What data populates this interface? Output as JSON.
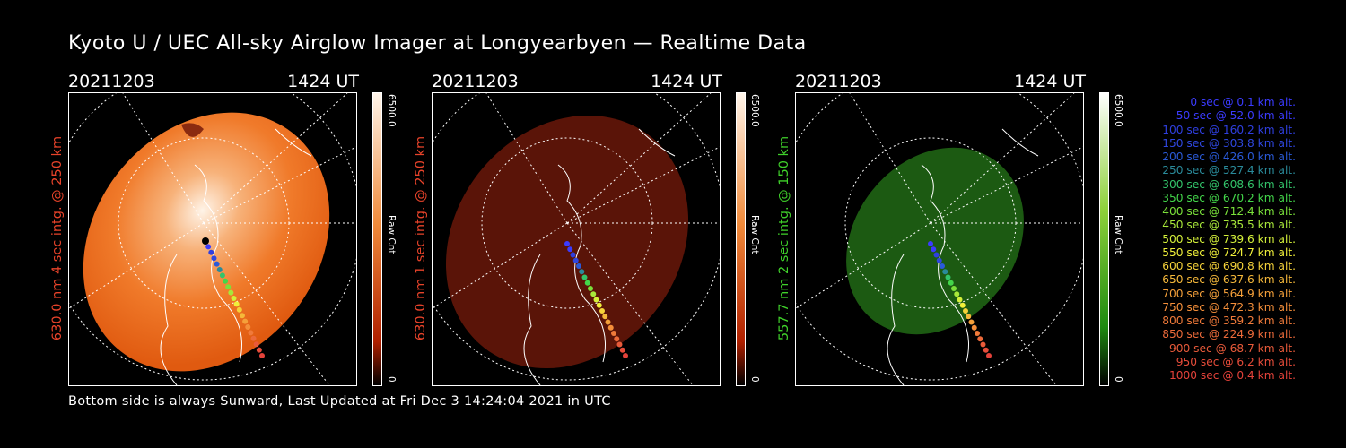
{
  "title": "Kyoto U / UEC All-sky Airglow Imager at Longyearbyen — Realtime Data",
  "footer": "Bottom side is always Sunward, Last Updated at Fri Dec  3 14:24:04 2021 in UTC",
  "panels": [
    {
      "date": "20211203",
      "time": "1424 UT",
      "ylabel": "630.0 nm 4 sec intg. @ 250 km",
      "label_color": "#e8432a",
      "cbar_max": "6500.0",
      "cbar_min": "0",
      "cbar_unit": "Raw Cnt",
      "image_color": "#f07a2a"
    },
    {
      "date": "20211203",
      "time": "1424 UT",
      "ylabel": "630.0 nm 1 sec intg. @ 250 km",
      "label_color": "#e8432a",
      "cbar_max": "6500.0",
      "cbar_min": "0",
      "cbar_unit": "Raw Cnt",
      "image_color": "#5a1408"
    },
    {
      "date": "20211203",
      "time": "1424 UT",
      "ylabel": "557.7 nm 2 sec intg. @ 150 km",
      "label_color": "#3fd02a",
      "cbar_max": "6500.0",
      "cbar_min": "0",
      "cbar_unit": "Raw Cnt",
      "image_color": "#1c5a12"
    }
  ],
  "legend": [
    {
      "text": "0 sec @   0.1 km alt.",
      "color": "#3b3bff"
    },
    {
      "text": "50 sec @  52.0 km alt.",
      "color": "#3b3bff"
    },
    {
      "text": "100 sec @ 160.2 km alt.",
      "color": "#2f3fe0"
    },
    {
      "text": "150 sec @ 303.8 km alt.",
      "color": "#2f47e0"
    },
    {
      "text": "200 sec @ 426.0 km alt.",
      "color": "#2a5ad8"
    },
    {
      "text": "250 sec @ 527.4 km alt.",
      "color": "#2a8a9a"
    },
    {
      "text": "300 sec @ 608.6 km alt.",
      "color": "#33c46a"
    },
    {
      "text": "350 sec @ 670.2 km alt.",
      "color": "#43d64a"
    },
    {
      "text": "400 sec @ 712.4 km alt.",
      "color": "#7ae03a"
    },
    {
      "text": "450 sec @ 735.5 km alt.",
      "color": "#a8e83a"
    },
    {
      "text": "500 sec @ 739.6 km alt.",
      "color": "#d4f03a"
    },
    {
      "text": "550 sec @ 724.7 km alt.",
      "color": "#f0f03a"
    },
    {
      "text": "600 sec @ 690.8 km alt.",
      "color": "#f5d23a"
    },
    {
      "text": "650 sec @ 637.6 km alt.",
      "color": "#f5b83a"
    },
    {
      "text": "700 sec @ 564.9 km alt.",
      "color": "#f5a03a"
    },
    {
      "text": "750 sec @ 472.3 km alt.",
      "color": "#f58f3a"
    },
    {
      "text": "800 sec @ 359.2 km alt.",
      "color": "#f07a3a"
    },
    {
      "text": "850 sec @ 224.9 km alt.",
      "color": "#ec6a3a"
    },
    {
      "text": "900 sec @  68.7 km alt.",
      "color": "#e85a3a"
    },
    {
      "text": "950 sec @   6.2 km alt.",
      "color": "#e64c3a"
    },
    {
      "text": "1000 sec @   0.4 km alt.",
      "color": "#e4423a"
    }
  ]
}
